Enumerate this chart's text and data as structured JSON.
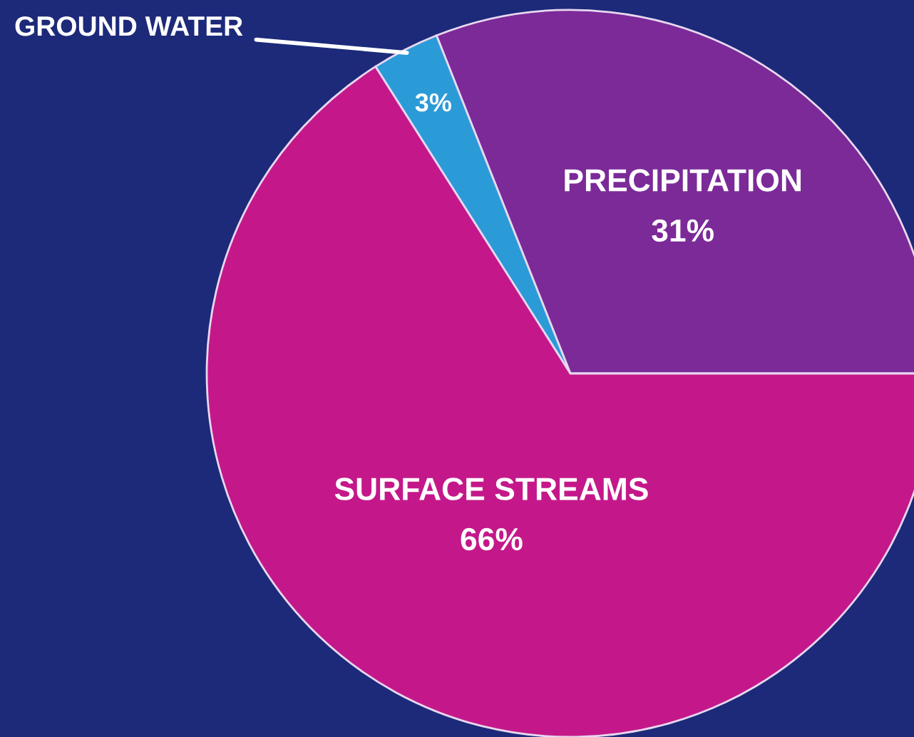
{
  "chart_data": {
    "type": "pie",
    "categories": [
      "PRECIPITATION",
      "GROUND WATER",
      "SURFACE STREAMS"
    ],
    "values": [
      31,
      3,
      66
    ],
    "value_labels": [
      "31%",
      "3%",
      "66%"
    ],
    "colors": [
      "#7b2a98",
      "#2b9bd8",
      "#c4188a"
    ]
  }
}
